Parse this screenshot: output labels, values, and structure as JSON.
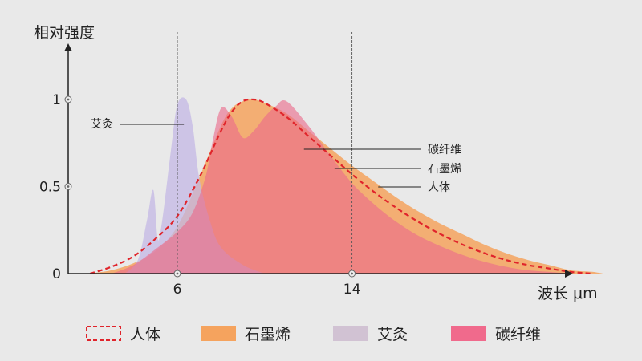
{
  "chart_data": {
    "type": "area",
    "ylabel": "相对强度",
    "xlabel": "波长 μm",
    "x_ticks": [
      6,
      14
    ],
    "y_ticks": [
      0,
      0.5,
      1
    ],
    "y_tick_labels": [
      "0",
      "0.5",
      "1"
    ],
    "xlim": [
      1,
      26
    ],
    "ylim": [
      0,
      1
    ],
    "grid": false,
    "guide_lines_x": [
      6,
      14
    ],
    "legend_position": "bottom",
    "series": [
      {
        "name": "石墨烯",
        "color": "#f5a35e",
        "style": "filled-area",
        "points": [
          [
            2,
            0
          ],
          [
            3,
            0.02
          ],
          [
            4,
            0.06
          ],
          [
            5,
            0.13
          ],
          [
            6,
            0.27
          ],
          [
            7,
            0.55
          ],
          [
            8,
            0.85
          ],
          [
            8.5,
            0.95
          ],
          [
            9,
            0.99
          ],
          [
            9.5,
            1.0
          ],
          [
            10,
            0.98
          ],
          [
            11,
            0.92
          ],
          [
            12,
            0.82
          ],
          [
            13,
            0.72
          ],
          [
            14,
            0.62
          ],
          [
            15,
            0.53
          ],
          [
            16,
            0.44
          ],
          [
            17,
            0.36
          ],
          [
            18,
            0.29
          ],
          [
            19,
            0.23
          ],
          [
            20,
            0.17
          ],
          [
            21,
            0.12
          ],
          [
            22,
            0.08
          ],
          [
            23,
            0.05
          ],
          [
            24,
            0.02
          ],
          [
            25,
            0.01
          ],
          [
            25.5,
            0
          ]
        ]
      },
      {
        "name": "艾灸",
        "color": "#c3b7e4",
        "style": "filled-area",
        "points": [
          [
            3.6,
            0
          ],
          [
            4.2,
            0.08
          ],
          [
            4.6,
            0.3
          ],
          [
            4.9,
            0.48
          ],
          [
            5.1,
            0.2
          ],
          [
            5.3,
            0.3
          ],
          [
            5.7,
            0.7
          ],
          [
            6,
            0.97
          ],
          [
            6.4,
            1.0
          ],
          [
            6.7,
            0.85
          ],
          [
            7,
            0.55
          ],
          [
            7.5,
            0.3
          ],
          [
            8,
            0.15
          ],
          [
            9,
            0.05
          ],
          [
            10,
            0
          ]
        ]
      },
      {
        "name": "碳纤维",
        "color": "#ea6a8a",
        "style": "filled-area",
        "points": [
          [
            3,
            0
          ],
          [
            4,
            0.05
          ],
          [
            5,
            0.14
          ],
          [
            6,
            0.24
          ],
          [
            6.7,
            0.35
          ],
          [
            7.3,
            0.56
          ],
          [
            7.6,
            0.75
          ],
          [
            8,
            0.95
          ],
          [
            8.5,
            0.9
          ],
          [
            9,
            0.78
          ],
          [
            9.5,
            0.82
          ],
          [
            10,
            0.9
          ],
          [
            10.5,
            0.96
          ],
          [
            11,
            0.99
          ],
          [
            12,
            0.85
          ],
          [
            13,
            0.68
          ],
          [
            14,
            0.52
          ],
          [
            15,
            0.4
          ],
          [
            16,
            0.3
          ],
          [
            17,
            0.22
          ],
          [
            18,
            0.16
          ],
          [
            19,
            0.11
          ],
          [
            20,
            0.07
          ],
          [
            21,
            0.04
          ],
          [
            22,
            0.02
          ],
          [
            23,
            0.01
          ],
          [
            24,
            0
          ]
        ]
      },
      {
        "name": "人体",
        "color": "#e0242b",
        "style": "dashed-line",
        "points": [
          [
            2,
            0
          ],
          [
            3,
            0.04
          ],
          [
            4,
            0.1
          ],
          [
            5,
            0.2
          ],
          [
            6,
            0.33
          ],
          [
            7,
            0.55
          ],
          [
            8,
            0.82
          ],
          [
            8.5,
            0.93
          ],
          [
            9,
            0.99
          ],
          [
            9.5,
            1.0
          ],
          [
            10,
            0.98
          ],
          [
            11,
            0.9
          ],
          [
            12,
            0.79
          ],
          [
            13,
            0.68
          ],
          [
            14,
            0.57
          ],
          [
            15,
            0.47
          ],
          [
            16,
            0.38
          ],
          [
            17,
            0.3
          ],
          [
            18,
            0.23
          ],
          [
            19,
            0.17
          ],
          [
            20,
            0.12
          ],
          [
            21,
            0.08
          ],
          [
            22,
            0.05
          ],
          [
            23,
            0.03
          ],
          [
            24,
            0.01
          ],
          [
            25,
            0
          ]
        ]
      }
    ],
    "legend": [
      {
        "label": "人体",
        "swatch": "dashed",
        "color": "#e0242b"
      },
      {
        "label": "石墨烯",
        "swatch": "solid",
        "color": "#f5a35e"
      },
      {
        "label": "艾灸",
        "swatch": "solid",
        "color": "#d1c2d3"
      },
      {
        "label": "碳纤维",
        "swatch": "solid",
        "color": "#f06a8c"
      }
    ],
    "annotations": [
      {
        "text": "艾灸",
        "target_x": 6.3,
        "target_y": 0.86
      },
      {
        "text": "碳纤维",
        "target_x": 11.8,
        "target_y": 0.71
      },
      {
        "text": "石墨烯",
        "target_x": 13.2,
        "target_y": 0.59
      },
      {
        "text": "人体",
        "target_x": 15.2,
        "target_y": 0.48
      }
    ]
  }
}
